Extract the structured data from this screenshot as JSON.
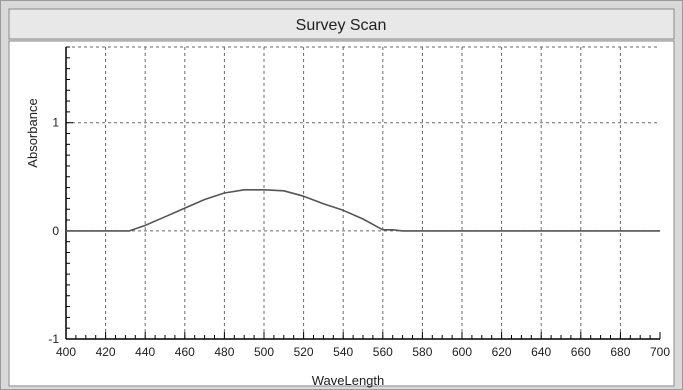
{
  "window": {
    "title": "Survey Scan"
  },
  "colors": {
    "background": "#d9d9d9",
    "plot_background": "#ffffff",
    "grid": "#6a6a6a",
    "curve": "#555555",
    "axis": "#000000"
  },
  "chart_data": {
    "type": "line",
    "title": "Survey Scan",
    "xlabel": "WaveLength",
    "ylabel": "Absorbance",
    "xlim": [
      400,
      700
    ],
    "ylim": [
      -1,
      1.7
    ],
    "x_ticks": [
      400,
      420,
      440,
      460,
      480,
      500,
      520,
      540,
      560,
      580,
      600,
      620,
      640,
      660,
      680,
      700
    ],
    "y_ticks": [
      -1,
      0,
      1
    ],
    "grid": true,
    "legend": "none",
    "series": [
      {
        "x": [
          400,
          432,
          440,
          450,
          460,
          470,
          480,
          490,
          500,
          510,
          520,
          530,
          540,
          550,
          560,
          565,
          570,
          700
        ],
        "y": [
          0,
          0,
          0.05,
          0.13,
          0.21,
          0.29,
          0.35,
          0.38,
          0.38,
          0.37,
          0.32,
          0.25,
          0.19,
          0.11,
          0.01,
          0.01,
          0,
          0
        ]
      }
    ]
  }
}
